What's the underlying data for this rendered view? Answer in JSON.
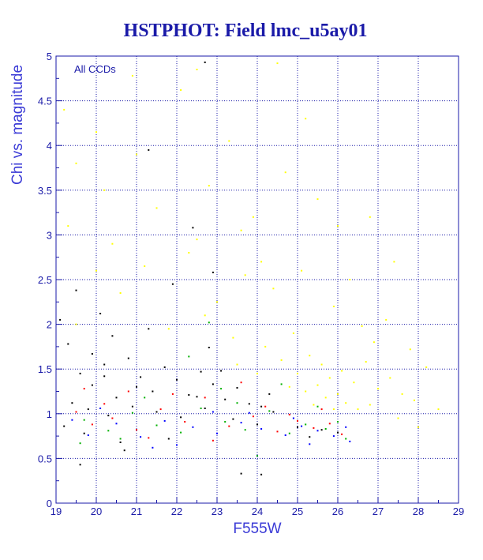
{
  "chart_data": {
    "type": "scatter",
    "title": "HSTPHOT: Field lmc_u5ay01",
    "xlabel": "F555W",
    "ylabel": "Chi vs. magnitude",
    "annotation": "All CCDs",
    "xlim": [
      19,
      29
    ],
    "ylim": [
      0,
      5
    ],
    "xticks": [
      19,
      20,
      21,
      22,
      23,
      24,
      25,
      26,
      27,
      28,
      29
    ],
    "yticks": [
      0,
      0.5,
      1,
      1.5,
      2,
      2.5,
      3,
      3.5,
      4,
      4.5,
      5
    ],
    "xtick_labels": [
      "19",
      "20",
      "21",
      "22",
      "23",
      "24",
      "25",
      "26",
      "27",
      "28",
      "29"
    ],
    "ytick_labels": [
      "0",
      "0.5",
      "1",
      "1.5",
      "2",
      "2.5",
      "3",
      "3.5",
      "4",
      "4.5",
      "5"
    ],
    "grid": true,
    "grid_style": "dotted",
    "series": [
      {
        "color": "#000000",
        "points": [
          [
            19.3,
            1.78
          ],
          [
            19.6,
            1.45
          ],
          [
            19.9,
            1.32
          ],
          [
            20.2,
            1.55
          ],
          [
            20.5,
            1.18
          ],
          [
            20.8,
            1.62
          ],
          [
            21.1,
            1.41
          ],
          [
            21.4,
            1.25
          ],
          [
            21.7,
            1.52
          ],
          [
            22.0,
            1.38
          ],
          [
            22.3,
            1.21
          ],
          [
            22.6,
            1.47
          ],
          [
            22.9,
            1.33
          ],
          [
            23.2,
            1.16
          ],
          [
            23.5,
            1.29
          ],
          [
            23.8,
            1.11
          ],
          [
            24.1,
            1.08
          ],
          [
            24.4,
            1.02
          ],
          [
            19.4,
            1.12
          ],
          [
            19.8,
            1.05
          ],
          [
            20.3,
            0.98
          ],
          [
            20.9,
            1.08
          ],
          [
            21.5,
            1.02
          ],
          [
            22.1,
            0.96
          ],
          [
            22.7,
            1.06
          ],
          [
            23.4,
            0.94
          ],
          [
            24.0,
            0.88
          ],
          [
            25.0,
            0.85
          ],
          [
            25.6,
            0.82
          ],
          [
            26.0,
            0.79
          ],
          [
            19.2,
            0.86
          ],
          [
            19.7,
            0.78
          ],
          [
            20.6,
            0.68
          ],
          [
            21.8,
            0.72
          ],
          [
            21.3,
            1.95
          ],
          [
            20.4,
            1.87
          ],
          [
            22.8,
            1.74
          ],
          [
            19.5,
            2.38
          ],
          [
            22.4,
            3.08
          ],
          [
            21.3,
            3.95
          ],
          [
            22.7,
            4.93
          ],
          [
            22.9,
            2.58
          ],
          [
            19.1,
            2.05
          ],
          [
            20.1,
            2.12
          ],
          [
            21.9,
            2.45
          ],
          [
            23.6,
            0.33
          ],
          [
            24.1,
            0.32
          ],
          [
            19.6,
            0.43
          ],
          [
            20.7,
            0.59
          ],
          [
            25.3,
            0.74
          ],
          [
            19.9,
            1.67
          ],
          [
            20.2,
            1.42
          ],
          [
            21.0,
            1.3
          ],
          [
            22.5,
            1.19
          ],
          [
            23.1,
            1.48
          ],
          [
            24.3,
            1.22
          ]
        ]
      },
      {
        "color": "#ff0000",
        "points": [
          [
            19.5,
            1.02
          ],
          [
            19.9,
            0.88
          ],
          [
            20.4,
            0.95
          ],
          [
            21.0,
            0.82
          ],
          [
            21.6,
            1.05
          ],
          [
            22.2,
            0.91
          ],
          [
            22.7,
            1.18
          ],
          [
            23.3,
            0.86
          ],
          [
            23.9,
            0.97
          ],
          [
            24.5,
            0.8
          ],
          [
            25.0,
            0.92
          ],
          [
            25.4,
            0.84
          ],
          [
            25.8,
            0.89
          ],
          [
            26.1,
            0.77
          ],
          [
            20.2,
            1.11
          ],
          [
            21.3,
            0.73
          ],
          [
            22.9,
            0.7
          ],
          [
            24.2,
            1.08
          ],
          [
            20.8,
            1.25
          ],
          [
            23.6,
            1.35
          ],
          [
            21.9,
            1.22
          ],
          [
            24.8,
            0.99
          ],
          [
            19.7,
            1.28
          ],
          [
            25.6,
            1.05
          ]
        ]
      },
      {
        "color": "#00b000",
        "points": [
          [
            19.7,
            0.93
          ],
          [
            20.3,
            0.81
          ],
          [
            20.9,
            1.01
          ],
          [
            21.5,
            0.87
          ],
          [
            22.1,
            0.79
          ],
          [
            22.6,
            1.06
          ],
          [
            23.2,
            0.91
          ],
          [
            23.7,
            0.82
          ],
          [
            24.3,
            1.03
          ],
          [
            24.8,
            0.78
          ],
          [
            25.2,
            0.88
          ],
          [
            25.7,
            0.83
          ],
          [
            26.0,
            0.91
          ],
          [
            26.2,
            0.72
          ],
          [
            21.2,
            1.18
          ],
          [
            22.3,
            1.64
          ],
          [
            24.0,
            0.53
          ],
          [
            23.1,
            1.28
          ],
          [
            20.6,
            0.72
          ],
          [
            25.5,
            1.08
          ],
          [
            24.6,
            1.33
          ],
          [
            19.6,
            0.67
          ],
          [
            23.5,
            1.12
          ],
          [
            22.8,
            2.02
          ]
        ]
      },
      {
        "color": "#0000ff",
        "points": [
          [
            19.8,
            0.76
          ],
          [
            20.5,
            0.89
          ],
          [
            21.1,
            0.74
          ],
          [
            21.7,
            0.92
          ],
          [
            22.4,
            0.85
          ],
          [
            23.0,
            0.78
          ],
          [
            23.6,
            0.9
          ],
          [
            24.1,
            0.83
          ],
          [
            24.7,
            0.76
          ],
          [
            25.1,
            0.86
          ],
          [
            25.5,
            0.81
          ],
          [
            25.9,
            0.75
          ],
          [
            26.2,
            0.85
          ],
          [
            26.3,
            0.69
          ],
          [
            20.1,
            1.06
          ],
          [
            22.0,
            0.65
          ],
          [
            23.8,
            1.01
          ],
          [
            24.9,
            0.95
          ],
          [
            25.3,
            0.66
          ],
          [
            21.4,
            0.62
          ],
          [
            19.4,
            0.93
          ],
          [
            22.9,
            1.02
          ]
        ]
      },
      {
        "color": "#ffff00",
        "points": [
          [
            19.2,
            4.4
          ],
          [
            19.5,
            3.8
          ],
          [
            20.0,
            4.15
          ],
          [
            20.9,
            4.78
          ],
          [
            21.5,
            3.3
          ],
          [
            22.1,
            4.62
          ],
          [
            22.8,
            3.55
          ],
          [
            23.3,
            4.05
          ],
          [
            23.9,
            3.2
          ],
          [
            24.5,
            4.92
          ],
          [
            25.2,
            4.3
          ],
          [
            26.0,
            3.1
          ],
          [
            26.8,
            3.2
          ],
          [
            20.4,
            2.9
          ],
          [
            21.2,
            2.65
          ],
          [
            22.3,
            2.8
          ],
          [
            23.0,
            2.25
          ],
          [
            23.7,
            2.55
          ],
          [
            24.4,
            2.4
          ],
          [
            25.1,
            2.6
          ],
          [
            25.9,
            2.2
          ],
          [
            26.6,
            1.98
          ],
          [
            27.2,
            2.05
          ],
          [
            19.5,
            2.0
          ],
          [
            20.6,
            2.35
          ],
          [
            21.8,
            1.95
          ],
          [
            22.7,
            2.1
          ],
          [
            23.4,
            1.85
          ],
          [
            24.2,
            1.75
          ],
          [
            24.9,
            1.9
          ],
          [
            25.3,
            1.65
          ],
          [
            25.6,
            1.55
          ],
          [
            25.8,
            1.4
          ],
          [
            26.1,
            1.48
          ],
          [
            26.4,
            1.35
          ],
          [
            26.7,
            1.58
          ],
          [
            27.0,
            1.28
          ],
          [
            27.3,
            1.4
          ],
          [
            27.6,
            1.22
          ],
          [
            27.9,
            1.15
          ],
          [
            28.2,
            1.52
          ],
          [
            28.5,
            1.05
          ],
          [
            25.2,
            1.25
          ],
          [
            25.5,
            1.32
          ],
          [
            25.7,
            1.18
          ],
          [
            26.0,
            1.22
          ],
          [
            26.2,
            1.12
          ],
          [
            26.5,
            1.05
          ],
          [
            26.8,
            1.1
          ],
          [
            27.5,
            0.95
          ],
          [
            28.0,
            0.85
          ],
          [
            27.8,
            1.72
          ],
          [
            26.9,
            1.8
          ],
          [
            24.6,
            1.6
          ],
          [
            24.0,
            1.45
          ],
          [
            23.5,
            1.55
          ],
          [
            25.0,
            1.45
          ],
          [
            25.4,
            1.1
          ],
          [
            25.9,
            1.05
          ],
          [
            24.8,
            1.3
          ],
          [
            22.5,
            4.85
          ],
          [
            21.0,
            3.9
          ],
          [
            20.2,
            3.5
          ],
          [
            24.7,
            3.7
          ],
          [
            25.5,
            3.4
          ],
          [
            22.5,
            2.95
          ],
          [
            23.6,
            3.05
          ],
          [
            24.1,
            2.7
          ],
          [
            26.3,
            2.5
          ],
          [
            20.0,
            2.6
          ],
          [
            19.3,
            3.1
          ],
          [
            27.4,
            2.7
          ]
        ]
      }
    ]
  }
}
